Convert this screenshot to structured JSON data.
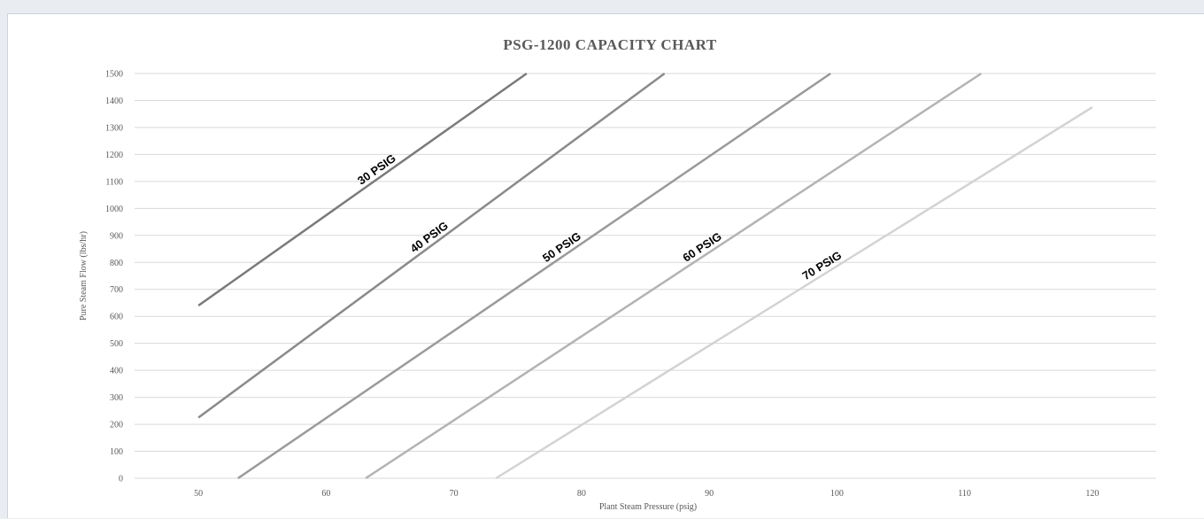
{
  "chart_data": {
    "type": "line",
    "title": "PSG-1200 CAPACITY CHART",
    "xlabel": "Plant Steam Pressure (psig)",
    "ylabel": "Pure Steam Flow (lbs/hr)",
    "xlim": [
      45,
      125
    ],
    "ylim": [
      0,
      1500
    ],
    "x_ticks": [
      50,
      60,
      70,
      80,
      90,
      100,
      110,
      120
    ],
    "y_ticks": [
      0,
      100,
      200,
      300,
      400,
      500,
      600,
      700,
      800,
      900,
      1000,
      1100,
      1200,
      1300,
      1400,
      1500
    ],
    "grid": "horizontal",
    "legend": "none",
    "series": [
      {
        "name": "30 PSIG",
        "color": "#7a7a7a",
        "x": [
          50,
          75.7
        ],
        "y": [
          640,
          1500
        ]
      },
      {
        "name": "40 PSIG",
        "color": "#8a8a8a",
        "x": [
          50,
          86.5
        ],
        "y": [
          225,
          1500
        ]
      },
      {
        "name": "50 PSIG",
        "color": "#9a9a9a",
        "x": [
          53.1,
          99.5
        ],
        "y": [
          0,
          1500
        ]
      },
      {
        "name": "60 PSIG",
        "color": "#b3b3b3",
        "x": [
          63.1,
          111.3
        ],
        "y": [
          0,
          1500
        ]
      },
      {
        "name": "70 PSIG",
        "color": "#d3d3d3",
        "x": [
          73.3,
          120
        ],
        "y": [
          0,
          1375
        ]
      }
    ]
  }
}
